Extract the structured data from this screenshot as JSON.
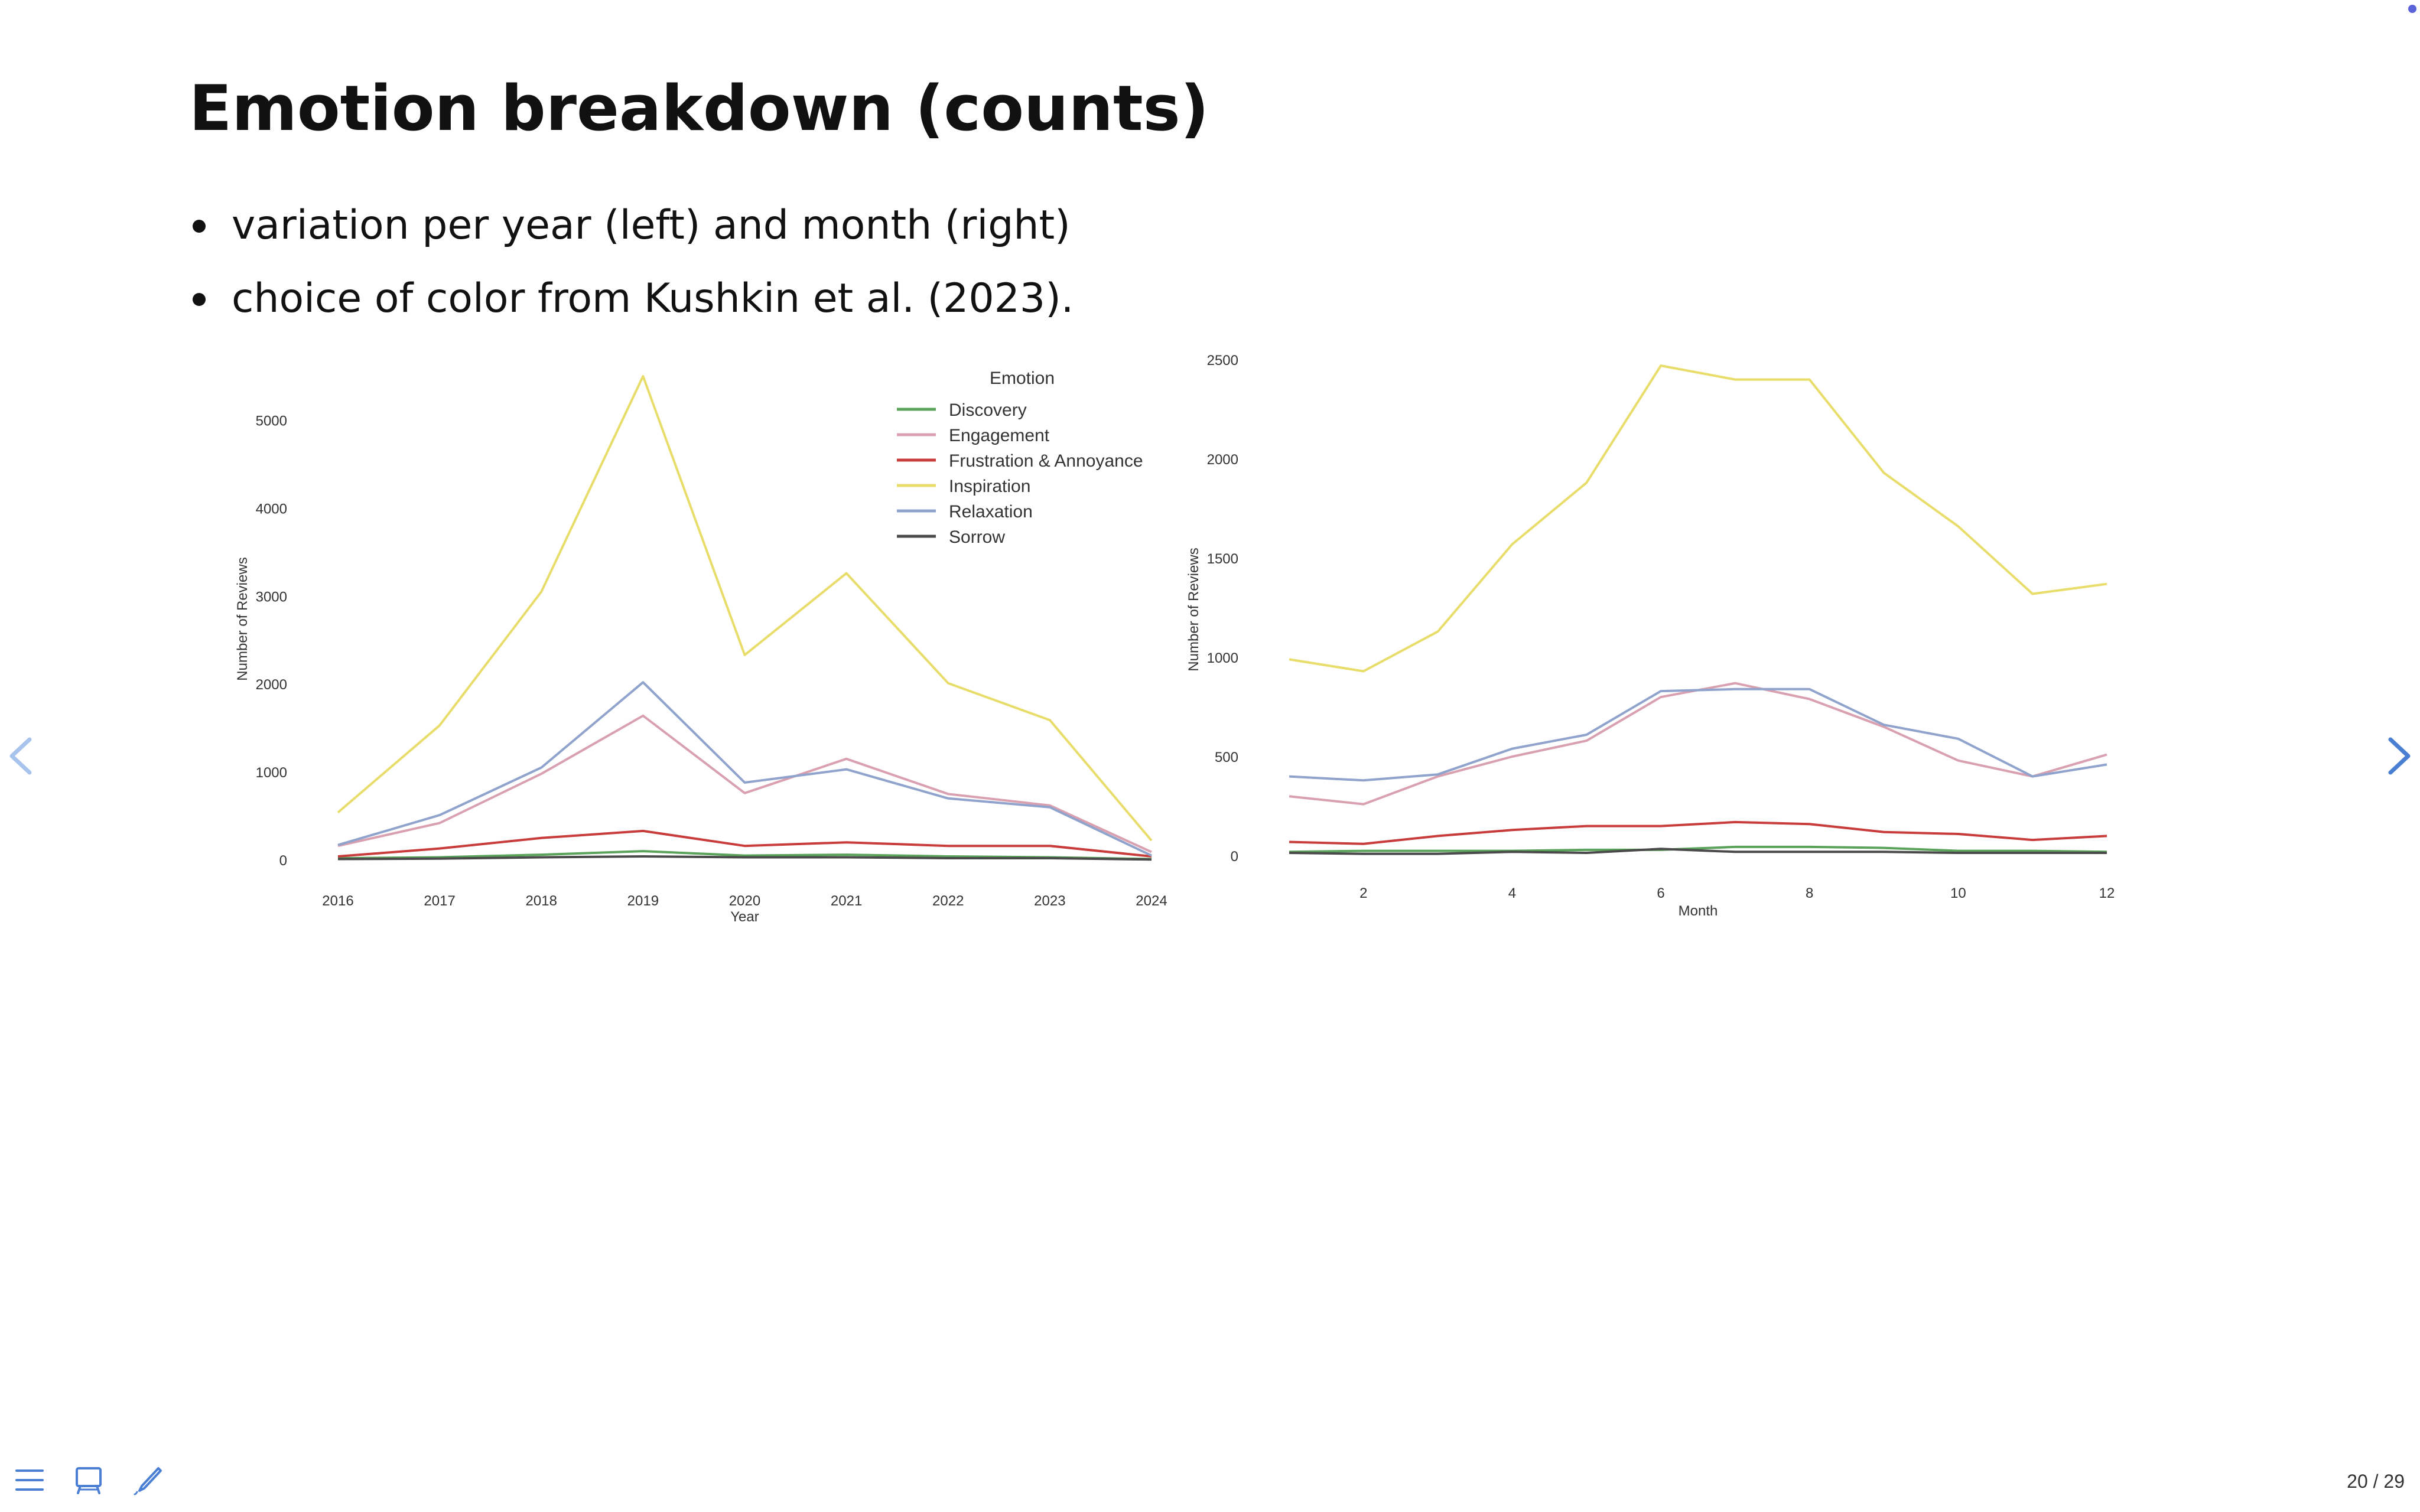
{
  "slide": {
    "title": "Emotion breakdown (counts)",
    "bullets": [
      "variation per year (left) and month (right)",
      "choice of color from Kushkin et al. (2023)."
    ],
    "page_number": "20 / 29"
  },
  "navigation": {
    "prev_icon": "chevron-left-icon",
    "next_icon": "chevron-right-icon",
    "controls": [
      "menu-icon",
      "slide-overview-icon",
      "pen-icon"
    ],
    "accent_color": "#4a7fd4",
    "prev_color": "#a9c4ec"
  },
  "colors": {
    "Discovery": "#5aa35a",
    "Engagement": "#d9a0b0",
    "Frustration & Annoyance": "#c83c3c",
    "Inspiration": "#e8dd6a",
    "Relaxation": "#8fa3cc",
    "Sorrow": "#4a4a4a"
  },
  "chart_data": [
    {
      "type": "line",
      "xlabel": "Year",
      "ylabel": "Number of Reviews",
      "x": [
        2016,
        2017,
        2018,
        2019,
        2020,
        2021,
        2022,
        2023,
        2024
      ],
      "xticks": [
        2016,
        2017,
        2018,
        2019,
        2020,
        2021,
        2022,
        2023,
        2024
      ],
      "yticks": [
        0,
        1000,
        2000,
        3000,
        4000,
        5000
      ],
      "xlim": [
        2016,
        2024
      ],
      "ylim": [
        0,
        5500
      ],
      "grid": false,
      "legend": {
        "title": "Emotion",
        "placement": "top-right"
      },
      "series": [
        {
          "name": "Discovery",
          "values": [
            20,
            30,
            60,
            100,
            50,
            60,
            40,
            30,
            10
          ]
        },
        {
          "name": "Engagement",
          "values": [
            160,
            420,
            980,
            1640,
            760,
            1150,
            750,
            620,
            90
          ]
        },
        {
          "name": "Frustration & Annoyance",
          "values": [
            40,
            130,
            250,
            330,
            160,
            200,
            160,
            160,
            40
          ]
        },
        {
          "name": "Inspiration",
          "values": [
            540,
            1530,
            3050,
            5500,
            2330,
            3260,
            2010,
            1590,
            220
          ]
        },
        {
          "name": "Relaxation",
          "values": [
            170,
            510,
            1050,
            2020,
            880,
            1030,
            700,
            600,
            50
          ]
        },
        {
          "name": "Sorrow",
          "values": [
            10,
            15,
            30,
            40,
            30,
            30,
            20,
            20,
            5
          ]
        }
      ]
    },
    {
      "type": "line",
      "xlabel": "Month",
      "ylabel": "Number of Reviews",
      "x": [
        1,
        2,
        3,
        4,
        5,
        6,
        7,
        8,
        9,
        10,
        11,
        12
      ],
      "xticks": [
        2,
        4,
        6,
        8,
        10,
        12
      ],
      "yticks": [
        0,
        500,
        1000,
        1500,
        2000,
        2500
      ],
      "xlim": [
        1,
        12
      ],
      "ylim": [
        0,
        2500
      ],
      "grid": false,
      "series": [
        {
          "name": "Discovery",
          "values": [
            20,
            25,
            25,
            25,
            30,
            30,
            45,
            45,
            40,
            25,
            25,
            20
          ]
        },
        {
          "name": "Engagement",
          "values": [
            300,
            260,
            400,
            500,
            580,
            800,
            870,
            790,
            650,
            480,
            400,
            510
          ]
        },
        {
          "name": "Frustration & Annoyance",
          "values": [
            70,
            60,
            100,
            130,
            150,
            150,
            170,
            160,
            120,
            110,
            80,
            100
          ]
        },
        {
          "name": "Inspiration",
          "values": [
            990,
            930,
            1130,
            1570,
            1880,
            2470,
            2400,
            2400,
            1930,
            1660,
            1320,
            1370
          ]
        },
        {
          "name": "Relaxation",
          "values": [
            400,
            380,
            410,
            540,
            610,
            830,
            840,
            840,
            660,
            590,
            400,
            460
          ]
        },
        {
          "name": "Sorrow",
          "values": [
            15,
            10,
            10,
            20,
            15,
            35,
            20,
            20,
            20,
            15,
            15,
            15
          ]
        }
      ]
    }
  ]
}
